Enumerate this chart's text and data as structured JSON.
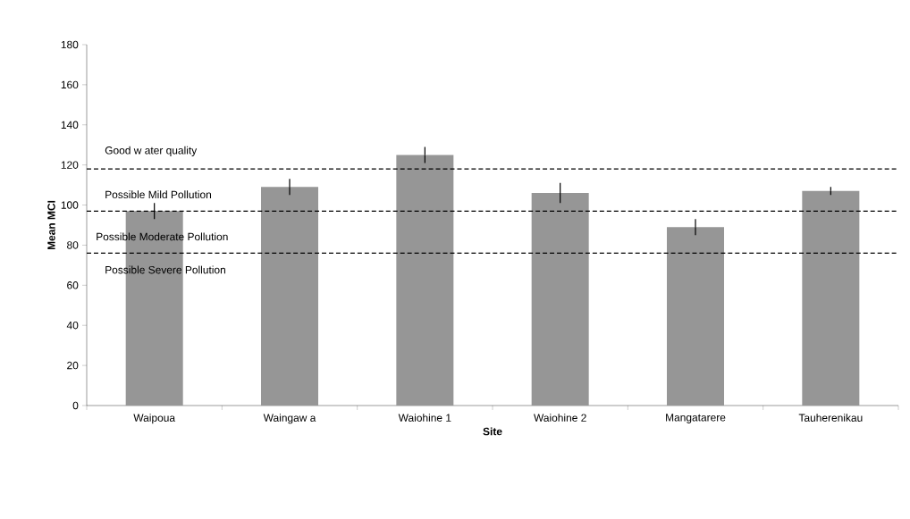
{
  "chart_data": {
    "type": "bar",
    "xlabel": "Site",
    "ylabel": "Mean MCI",
    "categories": [
      "Waipoua",
      "Waingaw a",
      "Waiohine 1",
      "Waiohine 2",
      "Mangatarere",
      "Tauherenikau"
    ],
    "values": [
      97,
      109,
      125,
      106,
      89,
      107
    ],
    "errors": [
      4,
      4,
      4,
      5,
      4,
      2
    ],
    "color": "#969696",
    "ylim": [
      0,
      180
    ],
    "yticks": [
      0,
      20,
      40,
      60,
      80,
      100,
      120,
      140,
      160,
      180
    ],
    "grid": false,
    "ref_lines": [
      {
        "axis": "y",
        "value": 118,
        "color": "#000000",
        "line_style": "dashed"
      },
      {
        "axis": "y",
        "value": 97,
        "color": "#000000",
        "line_style": "dashed"
      },
      {
        "axis": "y",
        "value": 76,
        "color": "#000000",
        "line_style": "dashed"
      }
    ],
    "annotations": [
      "Good w ater quality",
      "Possible Mild Pollution",
      "Possible Moderate Pollution",
      "Possible Severe Pollution"
    ]
  }
}
